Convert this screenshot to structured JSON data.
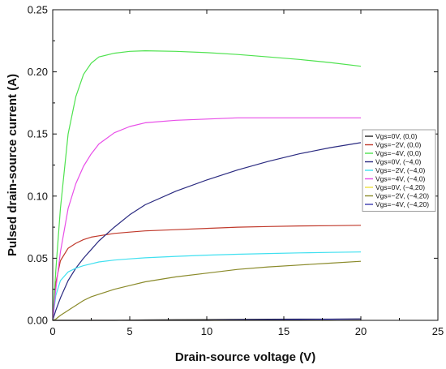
{
  "chart_data": {
    "type": "line",
    "title": "",
    "xlabel": "Drain-source voltage (V)",
    "ylabel": "Pulsed drain-source current (A)",
    "xlim": [
      0,
      25
    ],
    "ylim": [
      0,
      0.25
    ],
    "xticks": [
      0,
      5,
      10,
      15,
      20,
      25
    ],
    "xtick_labels": [
      "0",
      "5",
      "10",
      "15",
      "20",
      "25"
    ],
    "yticks": [
      0,
      0.05,
      0.1,
      0.15,
      0.2,
      0.25
    ],
    "ytick_labels": [
      "0.00",
      "0.05",
      "0.10",
      "0.15",
      "0.20",
      "0.25"
    ],
    "grid": false,
    "legend_position": "right",
    "x": [
      0,
      0.2,
      0.5,
      1,
      1.5,
      2,
      2.5,
      3,
      4,
      5,
      6,
      8,
      10,
      12,
      14,
      16,
      18,
      20
    ],
    "series": [
      {
        "name": "Vgs=0V, (0,0)",
        "color": "#222222",
        "values": [
          0,
          0,
          0,
          0,
          0,
          0,
          0,
          0,
          0,
          0.0002,
          0.0003,
          0.0005,
          0.0006,
          0.0008,
          0.0009,
          0.001,
          0.001,
          0.0012
        ]
      },
      {
        "name": "Vgs=−2V, (0,0)",
        "color": "#c0392b",
        "values": [
          0,
          0.03,
          0.048,
          0.058,
          0.062,
          0.065,
          0.067,
          0.068,
          0.07,
          0.071,
          0.072,
          0.073,
          0.074,
          0.075,
          0.0755,
          0.076,
          0.0762,
          0.0765
        ]
      },
      {
        "name": "Vgs=−4V, (0,0)",
        "color": "#4ee24e",
        "values": [
          0,
          0.04,
          0.09,
          0.15,
          0.18,
          0.198,
          0.207,
          0.212,
          0.215,
          0.2165,
          0.217,
          0.2165,
          0.2155,
          0.214,
          0.212,
          0.21,
          0.2075,
          0.2045
        ]
      },
      {
        "name": "Vgs=0V, (−4,0)",
        "color": "#2a2a80",
        "values": [
          0,
          0.008,
          0.018,
          0.032,
          0.042,
          0.05,
          0.057,
          0.064,
          0.075,
          0.085,
          0.093,
          0.104,
          0.113,
          0.121,
          0.128,
          0.134,
          0.139,
          0.143
        ]
      },
      {
        "name": "Vgs=−2V, (−4,0)",
        "color": "#40e0f0",
        "values": [
          0,
          0.02,
          0.032,
          0.039,
          0.042,
          0.044,
          0.0455,
          0.047,
          0.0485,
          0.0495,
          0.0503,
          0.0515,
          0.0525,
          0.0532,
          0.0538,
          0.0543,
          0.0547,
          0.055
        ]
      },
      {
        "name": "Vgs=−4V, (−4,0)",
        "color": "#e84ee8",
        "values": [
          0,
          0.025,
          0.055,
          0.09,
          0.11,
          0.124,
          0.134,
          0.142,
          0.151,
          0.156,
          0.159,
          0.161,
          0.162,
          0.163,
          0.163,
          0.163,
          0.163,
          0.163
        ]
      },
      {
        "name": "Vgs=0V, (−4,20)",
        "color": "#f0e040",
        "values": [
          0,
          0,
          0,
          0,
          0,
          0,
          0,
          0,
          0,
          0,
          0,
          0,
          0,
          0,
          0,
          0,
          0,
          0.0003
        ]
      },
      {
        "name": "Vgs=−2V, (−4,20)",
        "color": "#8a8a2a",
        "values": [
          0,
          0.001,
          0.004,
          0.008,
          0.012,
          0.016,
          0.019,
          0.021,
          0.025,
          0.028,
          0.031,
          0.035,
          0.038,
          0.041,
          0.043,
          0.0445,
          0.046,
          0.0475
        ]
      },
      {
        "name": "Vgs=−4V, (−4,20)",
        "color": "#3a3ab0",
        "values": [
          0,
          0,
          0,
          0,
          0,
          0,
          0,
          0,
          0,
          0,
          0,
          0,
          0,
          0.0003,
          0.0005,
          0.0007,
          0.0009,
          0.001
        ]
      }
    ]
  }
}
